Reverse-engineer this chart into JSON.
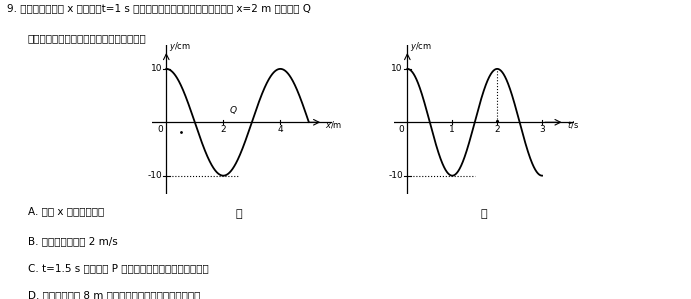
{
  "title_line1": "9. 一列简谐横波沿 x 轴传播，t=1 s 时的波形图如图甲所示，平衡位置在 x=2 m 处的质点 Q",
  "title_line2": "的振动图像如图乙所示，下列说法正确的是",
  "optionA": "A. 波沿 x 轴正方向传播",
  "optionB": "B. 波的传播速度为 2 m/s",
  "optionC": "C. t=1.5 s 时，质点 P 的速度方向和加速度的方向相同",
  "optionD": "D. 该波遇到宽为 8 m 的缝隙时，会发生明显的衍射现象",
  "graph1_label": "甲",
  "graph2_label": "乙",
  "bg_color": "#ffffff"
}
